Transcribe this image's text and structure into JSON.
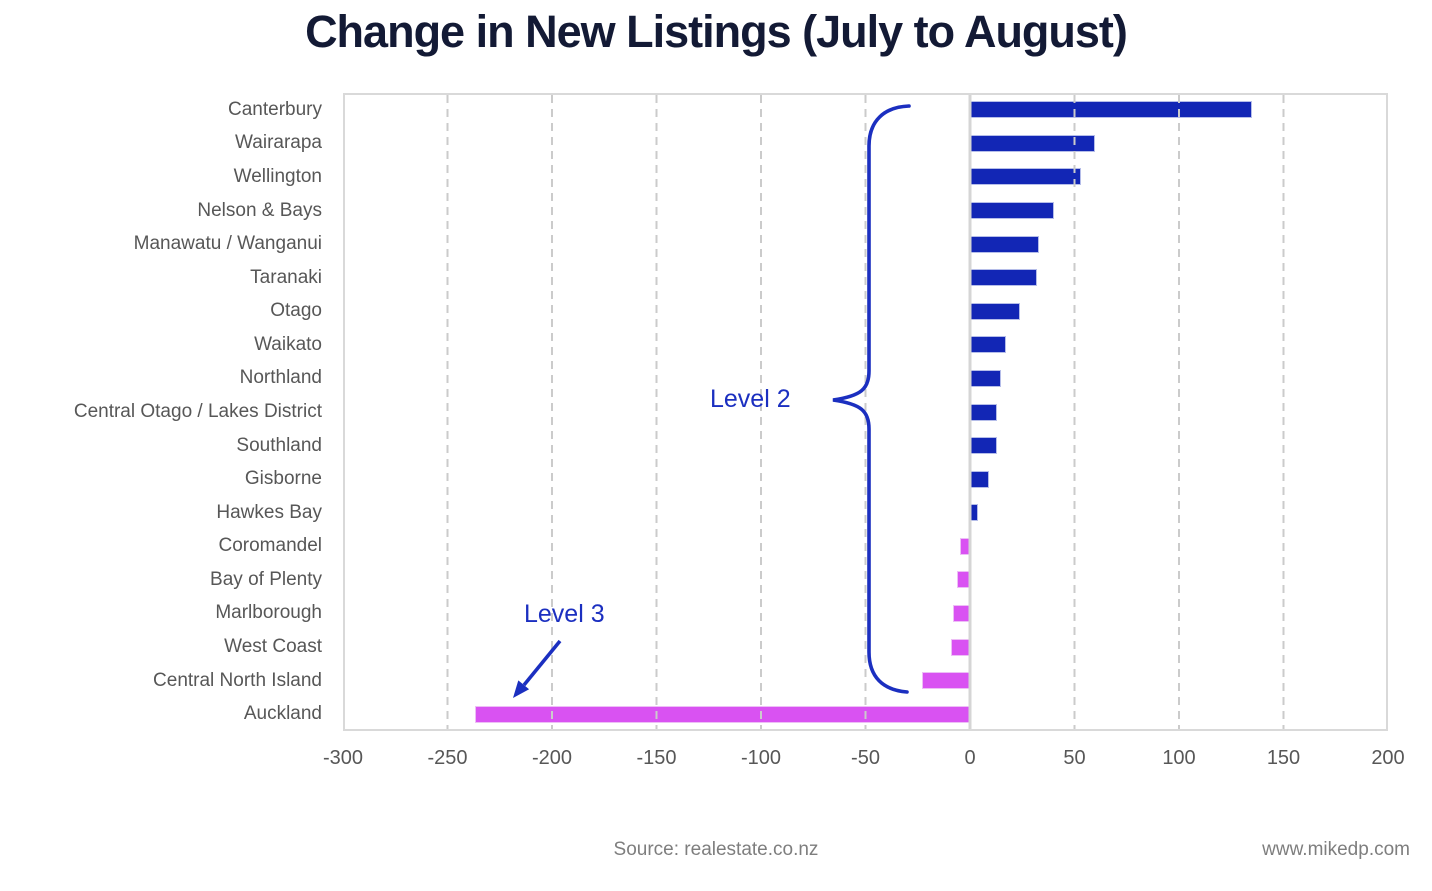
{
  "title": "Change in New Listings (July to August)",
  "annotations": {
    "level2_label": "Level 2",
    "level2_note": "brace grouping all regions from Canterbury to Central North Island",
    "level3_label": "Level 3",
    "level3_note": "arrow pointing to the Auckland bar",
    "color": "#1b2fc0"
  },
  "footer": {
    "source": "Source: realestate.co.nz",
    "website": "www.mikedp.com"
  },
  "chart_data": {
    "type": "bar",
    "orientation": "horizontal",
    "title": "Change in New Listings (July to August)",
    "categories": [
      "Canterbury",
      "Wairarapa",
      "Wellington",
      "Nelson & Bays",
      "Manawatu / Wanganui",
      "Taranaki",
      "Otago",
      "Waikato",
      "Northland",
      "Central Otago / Lakes District",
      "Southland",
      "Gisborne",
      "Hawkes Bay",
      "Coromandel",
      "Bay of Plenty",
      "Marlborough",
      "West Coast",
      "Central North Island",
      "Auckland"
    ],
    "values": [
      135,
      60,
      53,
      40,
      33,
      32,
      24,
      17,
      15,
      13,
      13,
      9,
      4,
      -5,
      -6,
      -8,
      -9,
      -23,
      -237
    ],
    "xlabel": "",
    "ylabel": "",
    "xlim": [
      -300,
      200
    ],
    "xticks": [
      -300,
      -250,
      -200,
      -150,
      -100,
      -50,
      0,
      50,
      100,
      150,
      200
    ],
    "grid": "vertical-dashed",
    "legend": "none",
    "positive_color": "#1226b5",
    "negative_color": "#d952f2",
    "gridline_color": "#cbcbcb",
    "zero_line_color": "#d5d5d5"
  }
}
